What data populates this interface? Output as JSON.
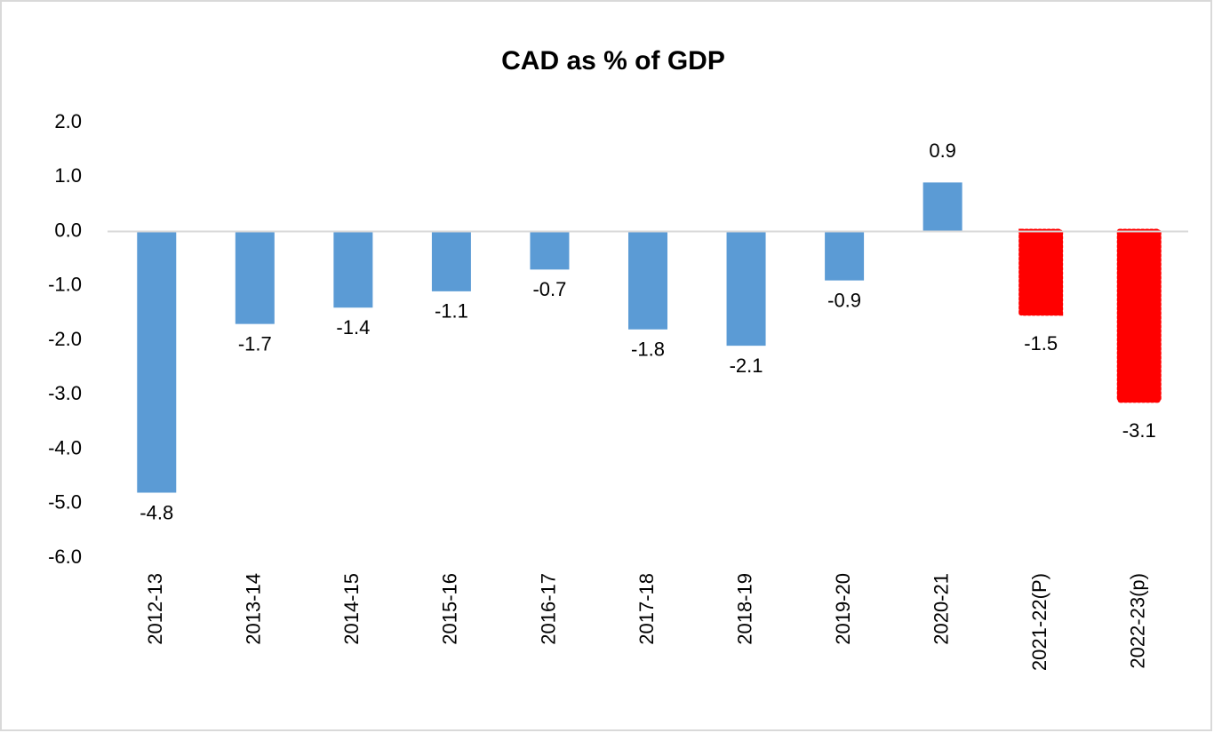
{
  "chart_data": {
    "type": "bar",
    "title": "CAD as % of GDP",
    "categories": [
      "2012-13",
      "2013-14",
      "2014-15",
      "2015-16",
      "2016-17",
      "2017-18",
      "2018-19",
      "2019-20",
      "2020-21",
      "2021-22(P)",
      "2022-23(p)"
    ],
    "values": [
      -4.8,
      -1.7,
      -1.4,
      -1.1,
      -0.7,
      -1.8,
      -2.1,
      -0.9,
      0.9,
      -1.5,
      -3.1
    ],
    "colors": [
      "#5b9bd5",
      "#5b9bd5",
      "#5b9bd5",
      "#5b9bd5",
      "#5b9bd5",
      "#5b9bd5",
      "#5b9bd5",
      "#5b9bd5",
      "#5b9bd5",
      "#ff0000",
      "#ff0000"
    ],
    "ylim": [
      -6,
      2
    ],
    "yticks": [
      {
        "value": 2,
        "label": "2.0"
      },
      {
        "value": 1,
        "label": "1.0"
      },
      {
        "value": 0,
        "label": "0.0"
      },
      {
        "value": -1,
        "label": "-1.0"
      },
      {
        "value": -2,
        "label": "-2.0"
      },
      {
        "value": -3,
        "label": "-3.0"
      },
      {
        "value": -4,
        "label": "-4.0"
      },
      {
        "value": -5,
        "label": "-5.0"
      },
      {
        "value": -6,
        "label": "-6.0"
      }
    ],
    "grid": false
  }
}
